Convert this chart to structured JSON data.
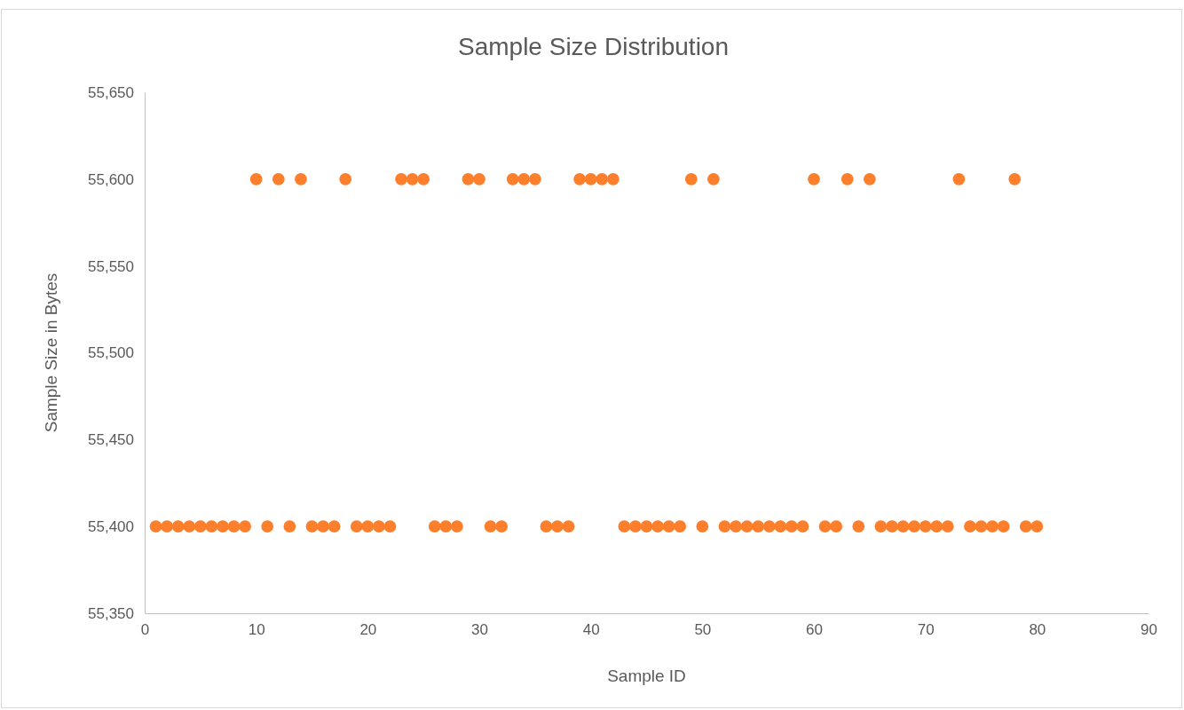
{
  "chart_data": {
    "type": "scatter",
    "title": "Sample Size Distribution",
    "xlabel": "Sample ID",
    "ylabel": "Sample Size in Bytes",
    "x": [
      1,
      2,
      3,
      4,
      5,
      6,
      7,
      8,
      9,
      10,
      11,
      12,
      13,
      14,
      15,
      16,
      17,
      18,
      19,
      20,
      21,
      22,
      23,
      24,
      25,
      26,
      27,
      28,
      29,
      30,
      31,
      32,
      33,
      34,
      35,
      36,
      37,
      38,
      39,
      40,
      41,
      42,
      43,
      44,
      45,
      46,
      47,
      48,
      49,
      50,
      51,
      52,
      53,
      54,
      55,
      56,
      57,
      58,
      59,
      60,
      61,
      62,
      63,
      64,
      65,
      66,
      67,
      68,
      69,
      70,
      71,
      72,
      73,
      74,
      75,
      76,
      77,
      78,
      79,
      80
    ],
    "values": [
      55400,
      55400,
      55400,
      55400,
      55400,
      55400,
      55400,
      55400,
      55400,
      55600,
      55400,
      55600,
      55400,
      55600,
      55400,
      55400,
      55400,
      55600,
      55400,
      55400,
      55400,
      55400,
      55600,
      55600,
      55600,
      55400,
      55400,
      55400,
      55600,
      55600,
      55400,
      55400,
      55600,
      55600,
      55600,
      55400,
      55400,
      55400,
      55600,
      55600,
      55600,
      55600,
      55400,
      55400,
      55400,
      55400,
      55400,
      55400,
      55600,
      55400,
      55600,
      55400,
      55400,
      55400,
      55400,
      55400,
      55400,
      55400,
      55400,
      55600,
      55400,
      55400,
      55600,
      55400,
      55600,
      55400,
      55400,
      55400,
      55400,
      55400,
      55400,
      55400,
      55600,
      55400,
      55400,
      55400,
      55400,
      55600,
      55400,
      55400
    ],
    "color": "#fd7f2c",
    "marker": "circle",
    "xlim": [
      0,
      90
    ],
    "xticks": [
      0,
      10,
      20,
      30,
      40,
      50,
      60,
      70,
      80,
      90
    ],
    "ylim": [
      55350,
      55650
    ],
    "yticks": [
      {
        "value": 55350,
        "label": "55,350"
      },
      {
        "value": 55400,
        "label": "55,400"
      },
      {
        "value": 55450,
        "label": "55,450"
      },
      {
        "value": 55500,
        "label": "55,500"
      },
      {
        "value": 55550,
        "label": "55,550"
      },
      {
        "value": 55600,
        "label": "55,600"
      },
      {
        "value": 55650,
        "label": "55,650"
      }
    ],
    "grid": false
  }
}
